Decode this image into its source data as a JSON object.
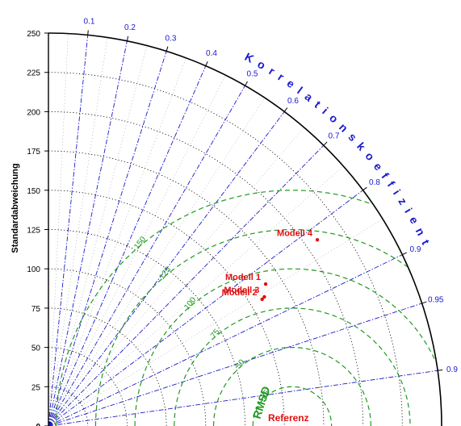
{
  "chart_data": {
    "type": "scatter",
    "title": "",
    "ylabel": "Standardabweichung",
    "std_ticks": [
      "0",
      "25",
      "50",
      "75",
      "100",
      "125",
      "150",
      "175",
      "200",
      "225",
      "250"
    ],
    "std_max": 250,
    "correlation_label": "Korrelationskoeffizient",
    "correlation_ticks": [
      "0.1",
      "0.2",
      "0.3",
      "0.4",
      "0.5",
      "0.6",
      "0.7",
      "0.8",
      "0.9",
      "0.95",
      "0.9"
    ],
    "rmsd_label": "RMSD",
    "rmsd_ticks": [
      "25",
      "50",
      "75",
      "100",
      "125",
      "150"
    ],
    "reference": {
      "label": "Referenz",
      "std": 155
    },
    "points": [
      {
        "name": "Modell 1",
        "std": 165,
        "corr": 0.837
      },
      {
        "name": "Modell 2",
        "std": 158,
        "corr": 0.86
      },
      {
        "name": "Modell 3",
        "std": 160,
        "corr": 0.858
      },
      {
        "name": "Modell 4",
        "std": 208,
        "corr": 0.822
      }
    ],
    "colors": {
      "correlation": "#1a1acc",
      "rmsd": "#1f9a1f",
      "points": "#e01010",
      "grid": "#000000"
    }
  }
}
